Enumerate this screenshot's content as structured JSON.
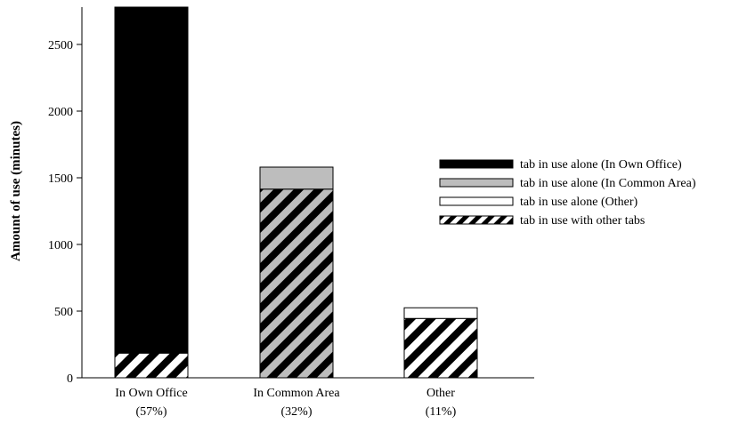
{
  "chart_data": {
    "type": "bar",
    "stacked": true,
    "categories": [
      {
        "line1": "In Own Office",
        "line2": "(57%)"
      },
      {
        "line1": "In Common Area",
        "line2": "(32%)"
      },
      {
        "line1": "Other",
        "line2": "(11%)"
      }
    ],
    "ylabel": "Amount of use (minutes)",
    "xlabel": "",
    "ylim": [
      0,
      2780
    ],
    "yticks": [
      0,
      500,
      1000,
      1500,
      2000,
      2500
    ],
    "grid": false,
    "legend_position": "right",
    "series": [
      {
        "name": "tab in use with other tabs",
        "pattern": "hatch-white",
        "values": [
          185,
          1415,
          445
        ]
      },
      {
        "name": "tab in use alone (In Own Office)",
        "pattern": "solid",
        "color": "#000000",
        "values": [
          2595,
          0,
          0
        ]
      },
      {
        "name": "tab in use alone (In Common Area)",
        "pattern": "solid",
        "color": "#bdbdbd",
        "values": [
          0,
          165,
          0
        ]
      },
      {
        "name": "tab in use alone (Other)",
        "pattern": "solid",
        "color": "#ffffff",
        "values": [
          0,
          0,
          80
        ]
      }
    ],
    "bar_hatch_background": [
      "#ffffff",
      "#bdbdbd",
      "#000000"
    ],
    "legend_order": [
      "tab in use alone (In Own Office)",
      "tab in use alone (In Common Area)",
      "tab in use alone (Other)",
      "tab in use with other tabs"
    ]
  }
}
